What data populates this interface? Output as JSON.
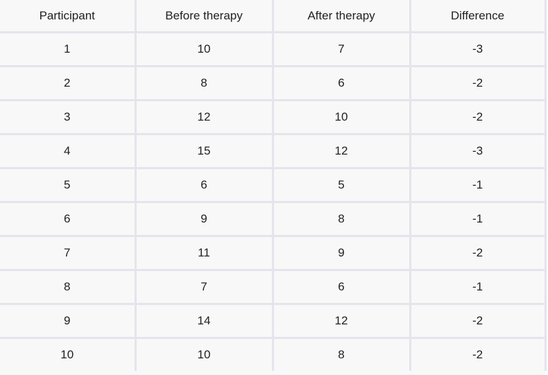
{
  "table": {
    "headers": [
      "Participant",
      "Before therapy",
      "After therapy",
      "Difference"
    ],
    "rows": [
      [
        "1",
        "10",
        "7",
        "-3"
      ],
      [
        "2",
        "8",
        "6",
        "-2"
      ],
      [
        "3",
        "12",
        "10",
        "-2"
      ],
      [
        "4",
        "15",
        "12",
        "-3"
      ],
      [
        "5",
        "6",
        "5",
        "-1"
      ],
      [
        "6",
        "9",
        "8",
        "-1"
      ],
      [
        "7",
        "11",
        "9",
        "-2"
      ],
      [
        "8",
        "7",
        "6",
        "-1"
      ],
      [
        "9",
        "14",
        "12",
        "-2"
      ],
      [
        "10",
        "10",
        "8",
        "-2"
      ]
    ]
  }
}
